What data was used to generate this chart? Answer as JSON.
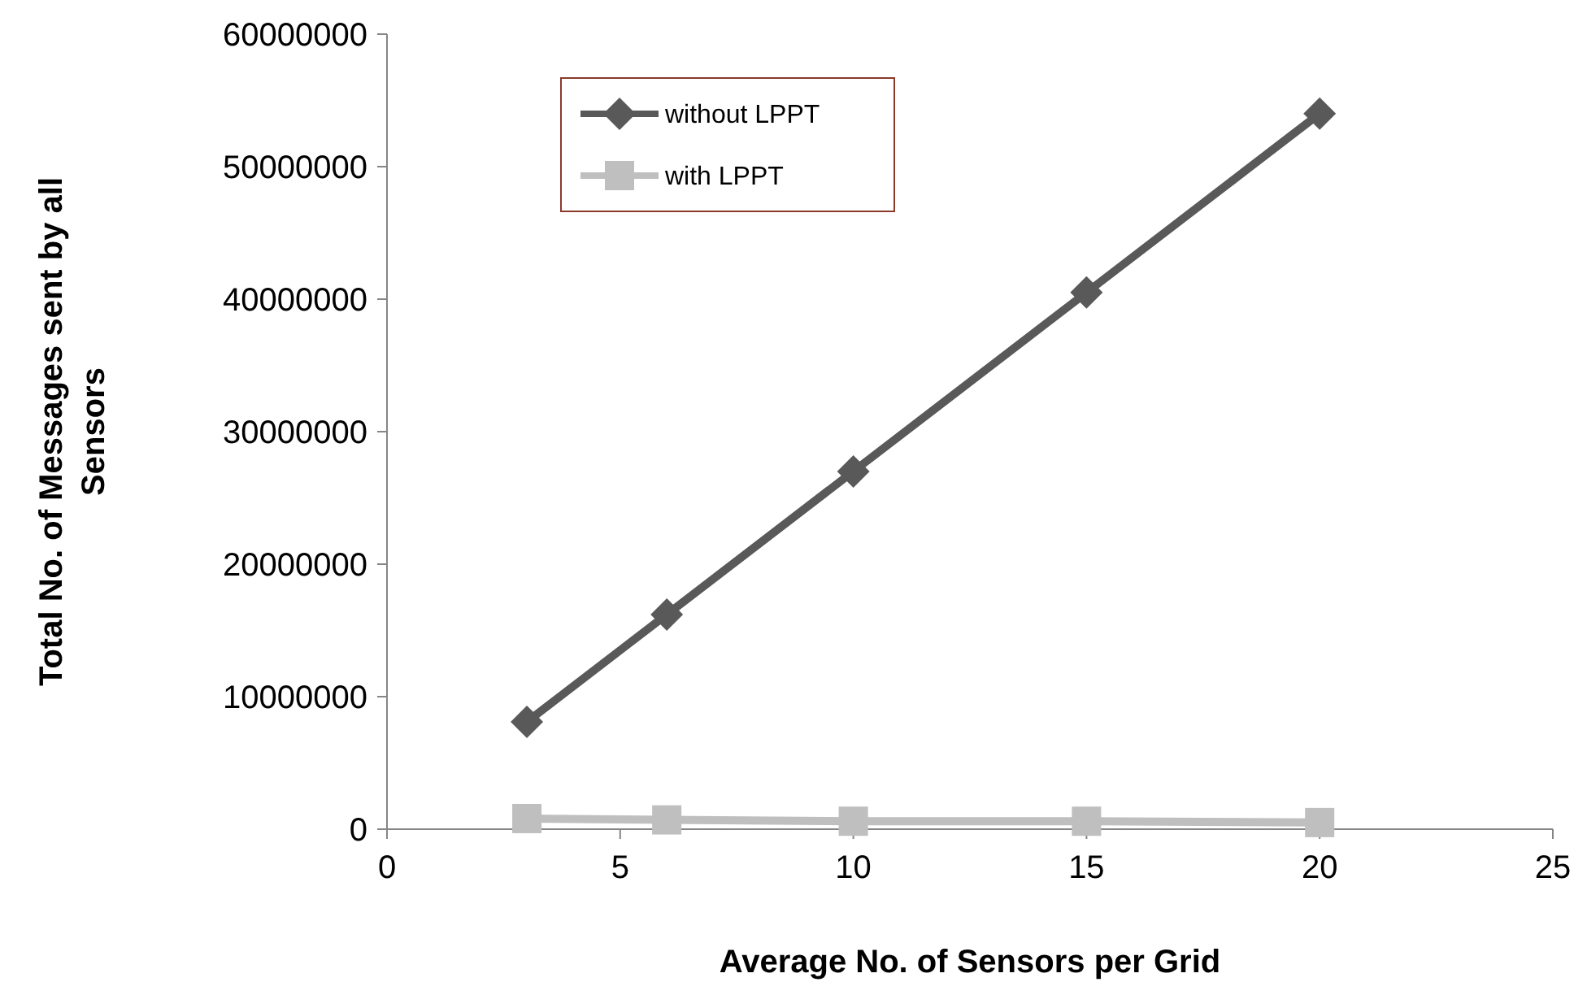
{
  "chart_data": {
    "type": "line",
    "xlabel": "Average No. of Sensors per Grid",
    "ylabel": "Total No. of Messages sent by all Sensors",
    "x": [
      3,
      6,
      10,
      15,
      20
    ],
    "series": [
      {
        "name": "without LPPT",
        "color": "#595959",
        "marker": "diamond",
        "values": [
          8100000,
          16200000,
          27000000,
          40500000,
          54000000
        ]
      },
      {
        "name": "with LPPT",
        "color": "#bfbfbf",
        "marker": "square",
        "values": [
          800000,
          700000,
          600000,
          600000,
          500000
        ]
      }
    ],
    "xlim": [
      0,
      25
    ],
    "xticks": [
      0,
      5,
      10,
      15,
      20,
      25
    ],
    "ylim": [
      0,
      60000000
    ],
    "yticks": [
      0,
      10000000,
      20000000,
      30000000,
      40000000,
      50000000,
      60000000
    ],
    "grid": false,
    "legend": "top left",
    "line_style": "solid"
  }
}
